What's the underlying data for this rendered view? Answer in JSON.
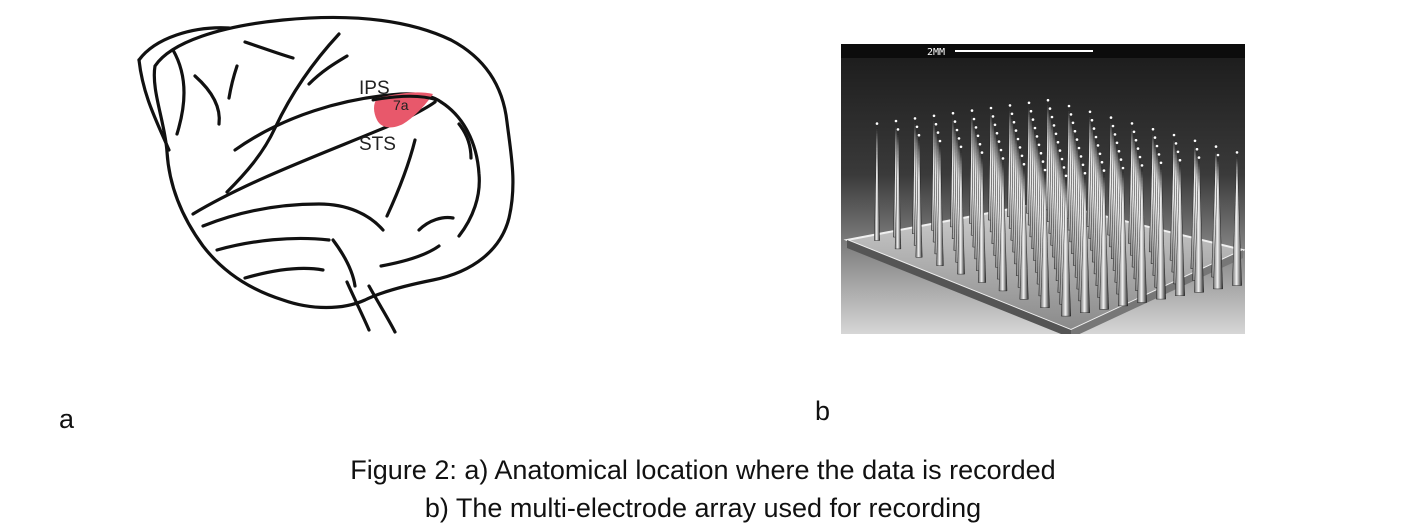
{
  "figure": {
    "panel_a": {
      "letter": "a",
      "labels": {
        "ips": "IPS",
        "area": "7a",
        "sts": "STS"
      },
      "highlight_color": "#e8586b"
    },
    "panel_b": {
      "letter": "b",
      "scale_bar_label": "2MM"
    },
    "caption": {
      "line1": "Figure 2: a) Anatomical location where the data is recorded",
      "line2": "b) The multi-electrode array used for recording"
    }
  }
}
